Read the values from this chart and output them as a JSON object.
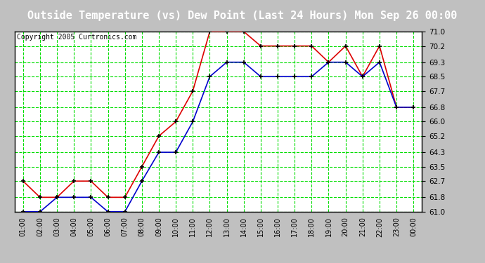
{
  "title": "Outside Temperature (vs) Dew Point (Last 24 Hours) Mon Sep 26 00:00",
  "copyright": "Copyright 2005 Curtronics.com",
  "x_labels": [
    "01:00",
    "02:00",
    "03:00",
    "04:00",
    "05:00",
    "06:00",
    "07:00",
    "08:00",
    "09:00",
    "10:00",
    "11:00",
    "12:00",
    "13:00",
    "14:00",
    "15:00",
    "16:00",
    "17:00",
    "18:00",
    "19:00",
    "20:00",
    "21:00",
    "22:00",
    "23:00",
    "00:00"
  ],
  "y_ticks": [
    61.0,
    61.8,
    62.7,
    63.5,
    64.3,
    65.2,
    66.0,
    66.8,
    67.7,
    68.5,
    69.3,
    70.2,
    71.0
  ],
  "ylim": [
    61.0,
    71.0
  ],
  "temp_red": [
    62.7,
    61.8,
    61.8,
    62.7,
    62.7,
    61.8,
    61.8,
    63.5,
    65.2,
    66.0,
    67.7,
    71.0,
    71.0,
    71.0,
    70.2,
    70.2,
    70.2,
    70.2,
    69.3,
    70.2,
    68.5,
    70.2,
    66.8,
    66.8
  ],
  "temp_blue": [
    61.0,
    61.0,
    61.8,
    61.8,
    61.8,
    61.0,
    61.0,
    62.7,
    64.3,
    64.3,
    66.0,
    68.5,
    69.3,
    69.3,
    68.5,
    68.5,
    68.5,
    68.5,
    69.3,
    69.3,
    68.5,
    69.3,
    66.8,
    66.8
  ],
  "bg_color": "#c0c0c0",
  "plot_bg": "#ffffff",
  "red_color": "#dd0000",
  "blue_color": "#0000cc",
  "grid_color": "#00dd00",
  "title_bg": "#000000",
  "title_fg": "#ffffff",
  "border_color": "#000000",
  "tick_label_color": "#000000",
  "copyright_color": "#000000",
  "title_fontsize": 11,
  "copyright_fontsize": 7,
  "tick_fontsize": 7.5,
  "xlabel_fontsize": 7
}
